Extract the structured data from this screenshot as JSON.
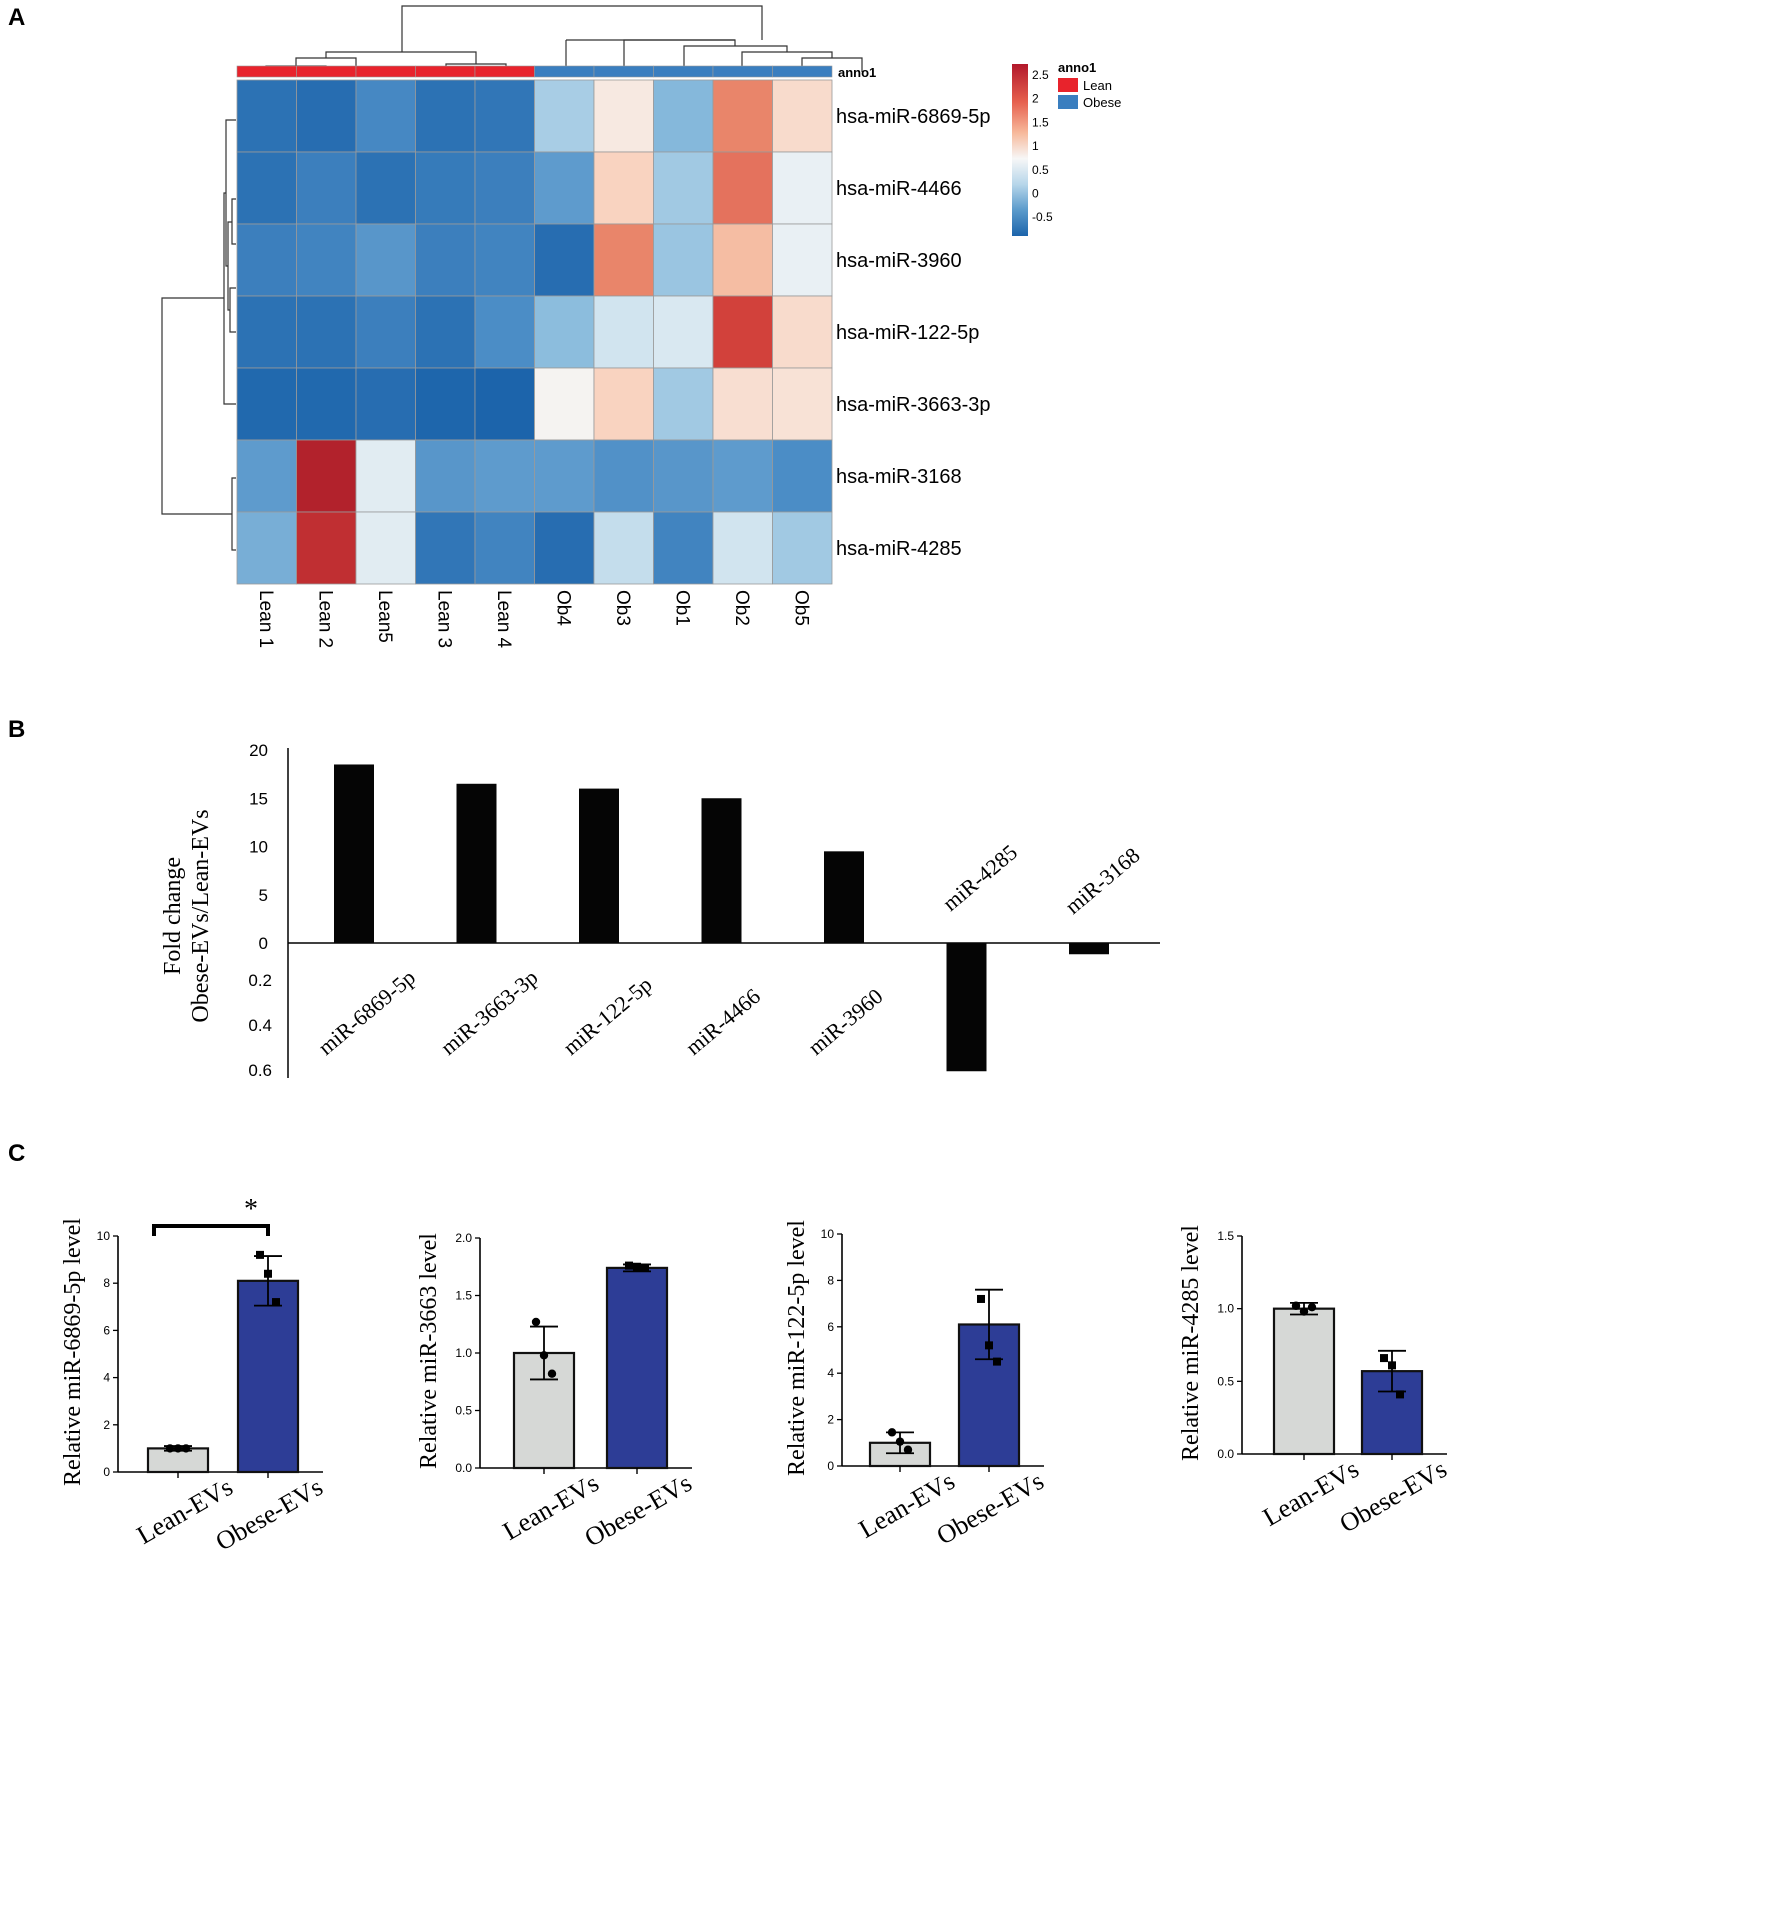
{
  "panels": {
    "a": "A",
    "b": "B",
    "c": "C"
  },
  "colors": {
    "lean": "#e8232c",
    "obese": "#3a7ebf",
    "bar_black": "#050505",
    "bar_grey": "#d6d8d6",
    "bar_blue": "#2d3d96",
    "scale": [
      "#1c64ab",
      "#4e8fc7",
      "#8cbddd",
      "#cfe3ef",
      "#f5f6f6",
      "#f9d6c4",
      "#f0a17f",
      "#d9473e",
      "#ad1e2a"
    ]
  },
  "chart_data": [
    {
      "type": "heatmap",
      "annotation_title": "anno1",
      "legend": [
        {
          "label": "Lean",
          "color": "#e8232c"
        },
        {
          "label": "Obese",
          "color": "#3a7ebf"
        }
      ],
      "colorbar_ticks": [
        "2.5",
        "2",
        "1.5",
        "1",
        "0.5",
        "0",
        "-0.5"
      ],
      "value_range": [
        -0.9,
        2.9
      ],
      "columns": [
        "Lean 1",
        "Lean 2",
        "Lean5",
        "Lean 3",
        "Lean 4",
        "Ob4",
        "Ob3",
        "Ob1",
        "Ob2",
        "Ob5"
      ],
      "column_groups": [
        "Lean",
        "Lean",
        "Lean",
        "Lean",
        "Lean",
        "Obese",
        "Obese",
        "Obese",
        "Obese",
        "Obese"
      ],
      "rows": [
        "hsa-miR-6869-5p",
        "hsa-miR-4466",
        "hsa-miR-3960",
        "hsa-miR-122-5p",
        "hsa-miR-3663-3p",
        "hsa-miR-3168",
        "hsa-miR-4285"
      ],
      "values": [
        [
          -0.75,
          -0.8,
          -0.5,
          -0.75,
          -0.7,
          0.25,
          1.2,
          0.0,
          2.1,
          1.4
        ],
        [
          -0.75,
          -0.6,
          -0.75,
          -0.65,
          -0.6,
          -0.3,
          1.5,
          0.2,
          2.2,
          0.85
        ],
        [
          -0.6,
          -0.55,
          -0.35,
          -0.6,
          -0.55,
          -0.8,
          2.1,
          0.15,
          1.7,
          0.85
        ],
        [
          -0.75,
          -0.75,
          -0.6,
          -0.75,
          -0.45,
          0.05,
          0.55,
          0.65,
          2.5,
          1.4
        ],
        [
          -0.85,
          -0.85,
          -0.8,
          -0.88,
          -0.9,
          1.05,
          1.5,
          0.2,
          1.35,
          1.3
        ],
        [
          -0.3,
          2.85,
          0.75,
          -0.35,
          -0.3,
          -0.3,
          -0.4,
          -0.35,
          -0.3,
          -0.45
        ],
        [
          -0.1,
          2.7,
          0.75,
          -0.7,
          -0.55,
          -0.8,
          0.45,
          -0.55,
          0.55,
          0.2
        ]
      ]
    },
    {
      "type": "bar",
      "ylabel_line1": "Fold change",
      "ylabel_line2": "Obese-EVs/Lean-EVs",
      "y_ticks_up": [
        "20",
        "15",
        "10",
        "5",
        "0"
      ],
      "y_ticks_down": [
        "0.2",
        "0.4",
        "0.6"
      ],
      "ylim_up": [
        0,
        20
      ],
      "ylim_down": [
        0,
        0.6
      ],
      "categories": [
        "miR-6869-5p",
        "miR-3663-3p",
        "miR-122-5p",
        "miR-4466",
        "miR-3960",
        "miR-4285",
        "miR-3168"
      ],
      "values": [
        18.5,
        16.5,
        16.0,
        15.0,
        9.5,
        0.57,
        0.05
      ],
      "direction": [
        "up",
        "up",
        "up",
        "up",
        "up",
        "down",
        "down"
      ]
    },
    {
      "type": "bar",
      "ylabel": "Relative miR-6869-5p level",
      "ylim": [
        0,
        10
      ],
      "y_ticks": [
        "0",
        "2",
        "4",
        "6",
        "8",
        "10"
      ],
      "categories": [
        "Lean-EVs",
        "Obese-EVs"
      ],
      "values": [
        1.0,
        8.1
      ],
      "errors": [
        0.1,
        1.05
      ],
      "points": [
        [
          1.0,
          1.0,
          1.0
        ],
        [
          9.2,
          8.4,
          7.2
        ]
      ],
      "significance": "*"
    },
    {
      "type": "bar",
      "ylabel": "Relative miR-3663 level",
      "ylim": [
        0,
        2.0
      ],
      "y_ticks": [
        "0.0",
        "0.5",
        "1.0",
        "1.5",
        "2.0"
      ],
      "categories": [
        "Lean-EVs",
        "Obese-EVs"
      ],
      "values": [
        1.0,
        1.74
      ],
      "errors": [
        0.23,
        0.03
      ],
      "points": [
        [
          1.27,
          0.98,
          0.82
        ],
        [
          1.76,
          1.75,
          1.74
        ]
      ]
    },
    {
      "type": "bar",
      "ylabel": "Relative miR-122-5p level",
      "ylim": [
        0,
        10
      ],
      "y_ticks": [
        "0",
        "2",
        "4",
        "6",
        "8",
        "10"
      ],
      "categories": [
        "Lean-EVs",
        "Obese-EVs"
      ],
      "values": [
        1.0,
        6.1
      ],
      "errors": [
        0.45,
        1.5
      ],
      "points": [
        [
          1.45,
          1.05,
          0.7
        ],
        [
          7.2,
          5.2,
          4.5
        ]
      ]
    },
    {
      "type": "bar",
      "ylabel": "Relative miR-4285 level",
      "ylim": [
        0,
        1.5
      ],
      "y_ticks": [
        "0.0",
        "0.5",
        "1.0",
        "1.5"
      ],
      "categories": [
        "Lean-EVs",
        "Obese-EVs"
      ],
      "values": [
        1.0,
        0.57
      ],
      "errors": [
        0.04,
        0.14
      ],
      "points": [
        [
          1.02,
          0.98,
          1.01
        ],
        [
          0.66,
          0.61,
          0.41
        ]
      ]
    }
  ]
}
